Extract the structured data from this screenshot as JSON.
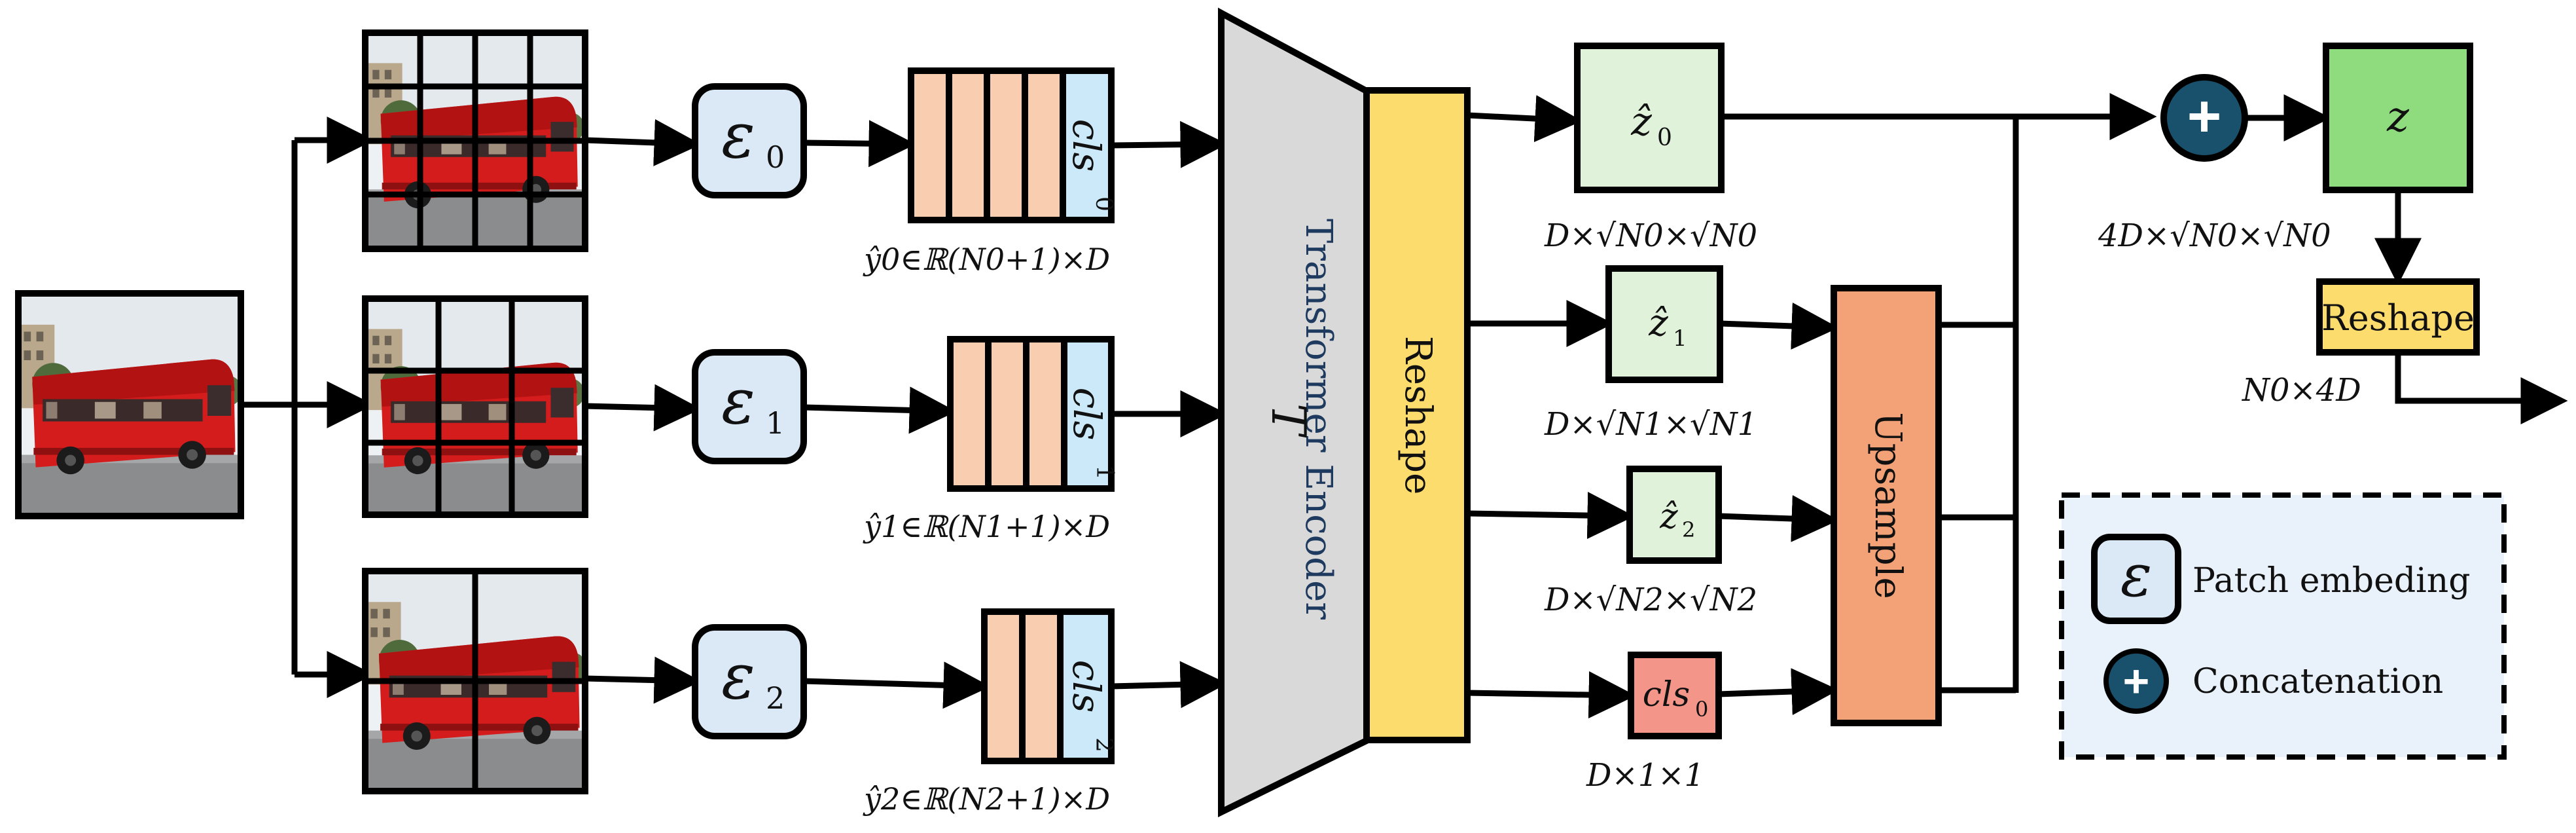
{
  "colors": {
    "token": "#f8cdb0",
    "cls_token": "#cbe9f8",
    "encoder_fill": "#d9d9d9",
    "reshape_fill": "#fddc6e",
    "latent_fill": "#e0f2da",
    "z_fill": "#8fdc7e",
    "cls_out_fill": "#f4958a",
    "upsample_fill": "#f3a176",
    "patch_embed_fill": "#dbe8f6",
    "concat_fill": "#19506b",
    "legend_bg": "#e9f2fa"
  },
  "branches": [
    {
      "grid": "4x4",
      "embed": "ε",
      "embed_sub": "0",
      "cls": "cls",
      "cls_sub": "0",
      "seq_label": "ŷ0∈ℝ(N0+1)×D"
    },
    {
      "grid": "3x3",
      "embed": "ε",
      "embed_sub": "1",
      "cls": "cls",
      "cls_sub": "1",
      "seq_label": "ŷ1∈ℝ(N1+1)×D"
    },
    {
      "grid": "2x2",
      "embed": "ε",
      "embed_sub": "2",
      "cls": "cls",
      "cls_sub": "2",
      "seq_label": "ŷ2∈ℝ(N2+1)×D"
    }
  ],
  "encoder": {
    "title": "Transformer Encoder",
    "symbol": "T"
  },
  "reshape_bar": "Reshape",
  "latents": [
    {
      "name": "ẑ",
      "sub": "0",
      "dims": "D×√N0×√N0"
    },
    {
      "name": "ẑ",
      "sub": "1",
      "dims": "D×√N1×√N1"
    },
    {
      "name": "ẑ",
      "sub": "2",
      "dims": "D×√N2×√N2"
    }
  ],
  "cls_out": {
    "name": "cls",
    "sub": "0",
    "dims": "D×1×1"
  },
  "upsample": "Upsample",
  "concat_symbol": "+",
  "z": {
    "name": "z",
    "dims": "4D×√N0×√N0"
  },
  "reshape_out": {
    "label": "Reshape",
    "dims": "N0×4D"
  },
  "legend": {
    "embed_symbol": "ε",
    "embed_label": "Patch embeding",
    "concat_symbol": "+",
    "concat_label": "Concatenation"
  }
}
